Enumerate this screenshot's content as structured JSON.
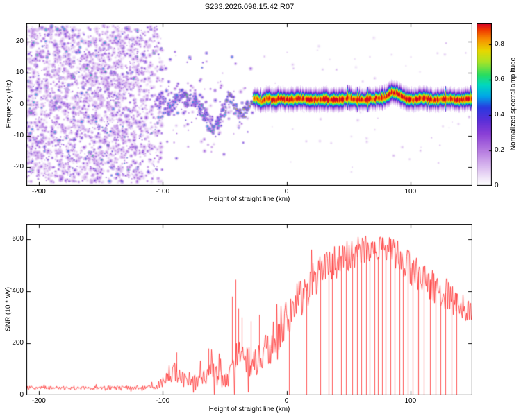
{
  "title": "S233.2026.098.15.42.R07",
  "colors": {
    "background": "#ffffff",
    "axis": "#000000",
    "snr_line": "#ff2a2a"
  },
  "colormap": [
    {
      "t": 0.0,
      "c": "#ffffff"
    },
    {
      "t": 0.04,
      "c": "#f3eafa"
    },
    {
      "t": 0.12,
      "c": "#d9b8ef"
    },
    {
      "t": 0.22,
      "c": "#b478e0"
    },
    {
      "t": 0.32,
      "c": "#8a3fd6"
    },
    {
      "t": 0.4,
      "c": "#5b2fd8"
    },
    {
      "t": 0.48,
      "c": "#2a3ae0"
    },
    {
      "t": 0.55,
      "c": "#00a8e8"
    },
    {
      "t": 0.62,
      "c": "#00d8c0"
    },
    {
      "t": 0.68,
      "c": "#28dd62"
    },
    {
      "t": 0.76,
      "c": "#a8e428"
    },
    {
      "t": 0.83,
      "c": "#e8d800"
    },
    {
      "t": 0.9,
      "c": "#f89000"
    },
    {
      "t": 0.96,
      "c": "#f03800"
    },
    {
      "t": 1.0,
      "c": "#d4002a"
    }
  ],
  "chart_data": [
    {
      "type": "heatmap",
      "name": "doppler-spectrogram",
      "xlabel": "Height of straight line (km)",
      "ylabel": "Frequency (Hz)",
      "xlim": [
        -210,
        150
      ],
      "ylim": [
        -26,
        26
      ],
      "x_ticks": [
        -200,
        -100,
        0,
        100
      ],
      "y_ticks": [
        20,
        10,
        0,
        -10,
        -20
      ],
      "colorbar": {
        "label": "Normalized spectral amplitude",
        "ticks": [
          0,
          0.2,
          0.4,
          0.6,
          0.8
        ],
        "range": [
          0,
          0.92
        ]
      },
      "regions": {
        "noise_field": {
          "x_range": [
            -210,
            -100
          ],
          "freq_range": [
            -25,
            25
          ],
          "amp_range": [
            0.07,
            0.6
          ]
        },
        "transition_scatter": {
          "x_range": [
            -100,
            -25
          ],
          "center_spread_hz": 5,
          "amp_range": [
            0.12,
            0.6
          ]
        },
        "echo_band": {
          "x_range": [
            -106,
            150
          ],
          "half_width_hz": 2.5
        }
      },
      "trace": {
        "x": [
          -105,
          -100,
          -95,
          -90,
          -85,
          -80,
          -75,
          -70,
          -65,
          -60,
          -55,
          -50,
          -46,
          -42,
          -38,
          -34,
          -30,
          -25,
          -20,
          -15,
          -10,
          -5,
          0,
          10,
          20,
          30,
          40,
          50,
          60,
          70,
          80,
          85,
          90,
          95,
          100,
          110,
          120,
          130,
          140,
          150
        ],
        "freq": [
          0,
          2,
          -2,
          1,
          3,
          1,
          2,
          -1,
          -4,
          -9,
          -6,
          -2,
          2,
          0,
          -4,
          -3,
          1,
          2,
          1,
          2,
          1.5,
          2,
          1.5,
          2,
          1.5,
          1.8,
          1.5,
          2,
          1.5,
          1.8,
          2.5,
          4,
          3.5,
          2,
          1.5,
          2,
          1.5,
          1.8,
          1.5,
          2
        ],
        "amp": [
          0.45,
          0.5,
          0.5,
          0.55,
          0.55,
          0.6,
          0.55,
          0.6,
          0.55,
          0.6,
          0.6,
          0.65,
          0.7,
          0.65,
          0.7,
          0.75,
          0.8,
          0.85,
          0.9,
          0.92,
          0.95,
          0.92,
          0.95,
          0.92,
          0.95,
          0.92,
          0.95,
          0.92,
          0.95,
          0.92,
          0.95,
          0.92,
          0.95,
          0.92,
          0.95,
          0.92,
          0.95,
          0.92,
          0.95,
          0.92
        ]
      }
    },
    {
      "type": "line",
      "name": "snr-profile",
      "xlabel": "Height of straight line (km)",
      "ylabel": "SNR (10 * v/v)",
      "xlim": [
        -210,
        150
      ],
      "ylim": [
        0,
        660
      ],
      "x_ticks": [
        -200,
        -100,
        0,
        100
      ],
      "y_ticks": [
        0,
        200,
        400,
        600
      ],
      "series_color": "#ff2a2a",
      "envelope": {
        "x": [
          -210,
          -150,
          -110,
          -100,
          -95,
          -90,
          -85,
          -80,
          -75,
          -70,
          -65,
          -60,
          -55,
          -50,
          -45,
          -40,
          -35,
          -30,
          -25,
          -20,
          -15,
          -10,
          -5,
          0,
          10,
          20,
          30,
          40,
          50,
          60,
          70,
          80,
          90,
          100,
          110,
          120,
          130,
          140,
          150
        ],
        "mean": [
          28,
          28,
          30,
          50,
          90,
          100,
          70,
          60,
          55,
          60,
          70,
          90,
          70,
          60,
          80,
          110,
          130,
          120,
          130,
          150,
          180,
          220,
          260,
          300,
          360,
          430,
          480,
          510,
          540,
          560,
          570,
          565,
          545,
          490,
          445,
          415,
          385,
          345,
          315
        ],
        "noise": [
          8,
          8,
          10,
          25,
          45,
          55,
          30,
          25,
          25,
          30,
          40,
          55,
          40,
          35,
          55,
          110,
          90,
          70,
          60,
          70,
          80,
          90,
          90,
          90,
          90,
          85,
          80,
          80,
          70,
          65,
          60,
          60,
          70,
          70,
          70,
          80,
          70,
          60,
          50
        ]
      },
      "spikes": [
        {
          "x": -89,
          "v": 165
        },
        {
          "x": -63,
          "v": 180
        },
        {
          "x": -44,
          "v": 380
        },
        {
          "x": -41,
          "v": 445
        },
        {
          "x": -39,
          "v": 335
        },
        {
          "x": -36,
          "v": 300
        },
        {
          "x": -29,
          "v": 285
        },
        {
          "x": -22,
          "v": 310
        }
      ],
      "dropouts": [
        2,
        16,
        27,
        34,
        37,
        44,
        48,
        53,
        57,
        60,
        64,
        67,
        71,
        74,
        77,
        80,
        84,
        87,
        91,
        94,
        98,
        102,
        106,
        111,
        116,
        120,
        124,
        128,
        133,
        137
      ]
    }
  ]
}
